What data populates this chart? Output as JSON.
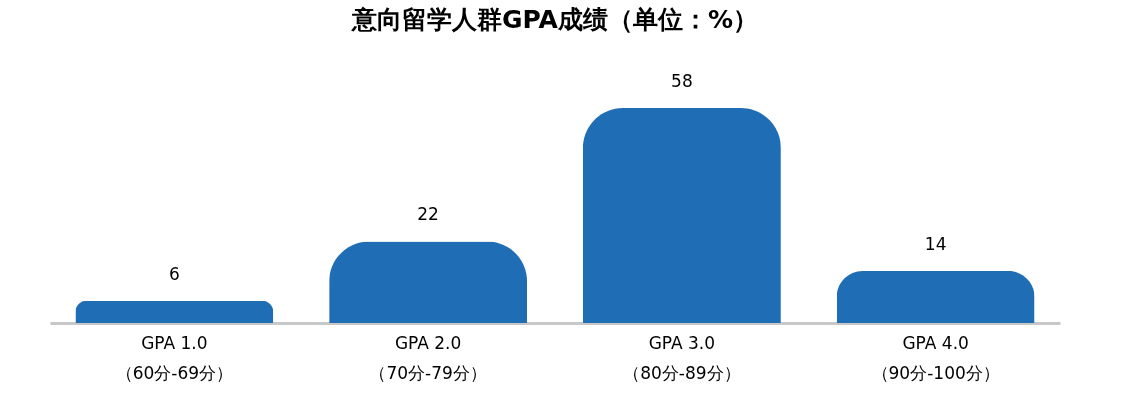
{
  "chart_data": {
    "type": "bar",
    "title": "意向留学人群GPA成绩（单位：%）",
    "categories": [
      "GPA 1.0\n（60分-69分）",
      "GPA 2.0\n（70分-79分）",
      "GPA 3.0\n（80分-89分）",
      "GPA 4.0\n（90分-100分）"
    ],
    "values": [
      6,
      22,
      58,
      14
    ],
    "color": "#1f6eb5",
    "data_labels": true
  }
}
